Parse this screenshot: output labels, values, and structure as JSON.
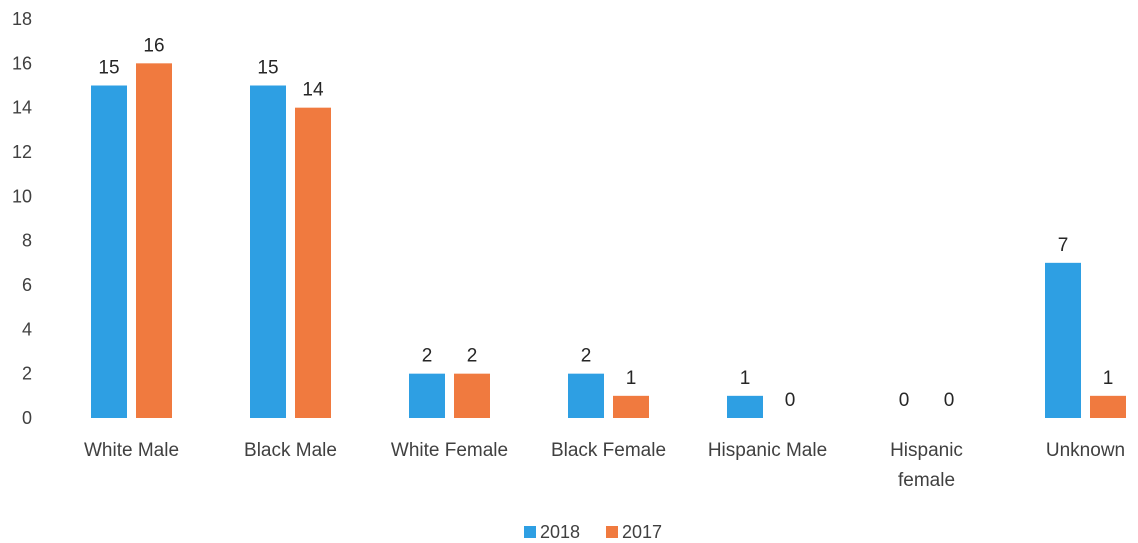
{
  "chart_data": {
    "type": "bar",
    "title": "",
    "xlabel": "",
    "ylabel": "",
    "ylim": [
      0,
      18
    ],
    "yticks": [
      0,
      2,
      4,
      6,
      8,
      10,
      12,
      14,
      16,
      18
    ],
    "grid": false,
    "legend_position": "bottom",
    "categories": [
      [
        "White Male"
      ],
      [
        "Black Male"
      ],
      [
        "White Female"
      ],
      [
        "Black Female"
      ],
      [
        "Hispanic Male"
      ],
      [
        "Hispanic",
        "female"
      ],
      [
        "Unknown"
      ]
    ],
    "series": [
      {
        "name": "2018",
        "color": "#2e9fe3",
        "values": [
          15,
          15,
          2,
          2,
          1,
          0,
          7
        ]
      },
      {
        "name": "2017",
        "color": "#f07a3f",
        "values": [
          16,
          14,
          2,
          1,
          0,
          0,
          1
        ]
      }
    ]
  }
}
